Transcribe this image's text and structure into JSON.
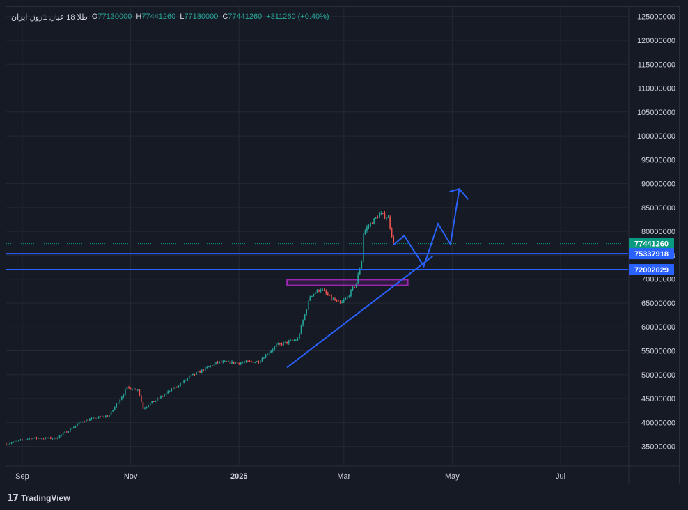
{
  "legend": {
    "symbol": "طلا 18 عیار, 1روز, ایران",
    "open_k": "O",
    "open": "77130000",
    "high_k": "H",
    "high": "77441260",
    "low_k": "L",
    "low": "77130000",
    "close_k": "C",
    "close": "77441260",
    "change": "+311260 (+0.40%)"
  },
  "brand": {
    "name": "TradingView"
  },
  "colors": {
    "up": "#26a69a",
    "down": "#ef5350",
    "drawing": "#2962ff",
    "zone": "#9c27b0",
    "grid": "#242833",
    "axis_text": "#d1d4dc"
  },
  "chart_data": {
    "type": "candlestick",
    "interval": "1D",
    "price_axis": {
      "ticks": [
        35000000,
        40000000,
        45000000,
        50000000,
        55000000,
        60000000,
        65000000,
        70000000,
        75000000,
        80000000,
        85000000,
        90000000,
        95000000,
        100000000,
        105000000,
        110000000,
        115000000,
        120000000,
        125000000
      ],
      "tick_labels": [
        "35000000",
        "40000000",
        "45000000",
        "50000000",
        "55000000",
        "60000000",
        "65000000",
        "70000000",
        "75000000",
        "80000000",
        "85000000",
        "90000000",
        "95000000",
        "100000000",
        "105000000",
        "110000000",
        "115000000",
        "120000000",
        "125000000"
      ],
      "range": [
        31000000,
        127000000
      ]
    },
    "time_axis": {
      "labels": [
        "Sep",
        "Nov",
        "2025",
        "Mar",
        "May",
        "Jul"
      ],
      "range": [
        "2024-08-23",
        "2025-08-08"
      ]
    },
    "last_price": {
      "value": 77441260,
      "label": "77441260",
      "color": "#089981"
    },
    "horizontal_lines": [
      {
        "value": 75337918,
        "label": "75337918"
      },
      {
        "value": 72002029,
        "label": "72002029"
      }
    ],
    "trendline": {
      "from": {
        "date": "2025-01-28",
        "price": 51500000
      },
      "to": {
        "date": "2025-04-20",
        "price": 74800000
      }
    },
    "zone": {
      "from": "2025-01-28",
      "to": "2025-04-06",
      "low": 68700000,
      "high": 69900000
    },
    "projection": {
      "dates": [
        "2025-03-29",
        "2025-04-04",
        "2025-04-15",
        "2025-04-23",
        "2025-04-30",
        "2025-05-05",
        "2025-05-10"
      ],
      "prices": [
        77200000,
        79100000,
        72700000,
        81600000,
        77300000,
        88900000,
        86700000
      ]
    },
    "waypoints": {
      "dates": [
        "2024-08-23",
        "2024-09-05",
        "2024-09-20",
        "2024-10-05",
        "2024-10-20",
        "2024-10-30",
        "2024-11-05",
        "2024-11-08",
        "2024-11-20",
        "2024-12-05",
        "2024-12-20",
        "2025-01-01",
        "2025-01-12",
        "2025-01-22",
        "2025-02-03",
        "2025-02-10",
        "2025-02-16",
        "2025-02-21",
        "2025-02-27",
        "2025-03-03",
        "2025-03-08",
        "2025-03-11",
        "2025-03-12",
        "2025-03-14",
        "2025-03-21",
        "2025-03-26",
        "2025-03-29"
      ],
      "prices": [
        35500000,
        36700000,
        36700000,
        40300000,
        41500000,
        47200000,
        47000000,
        43000000,
        45800000,
        49700000,
        52600000,
        52500000,
        52800000,
        56100000,
        57400000,
        66500000,
        68000000,
        66200000,
        64800000,
        66200000,
        69200000,
        74000000,
        79600000,
        80800000,
        83600000,
        82900000,
        77441260
      ]
    }
  }
}
